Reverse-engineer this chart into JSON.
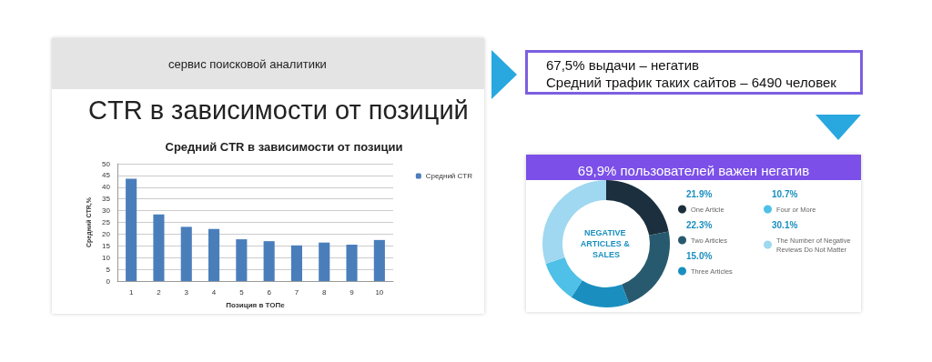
{
  "chart_data": [
    {
      "type": "bar",
      "title": "Средний CTR в зависимости от позиции",
      "annotations": [
        "сервис поисковой аналитики",
        "CTR в зависимости от позиций"
      ],
      "xlabel": "Позиция в ТОПе",
      "ylabel": "Средний CTR,%",
      "categories": [
        "1",
        "2",
        "3",
        "4",
        "5",
        "6",
        "7",
        "8",
        "9",
        "10"
      ],
      "series": [
        {
          "name": "Средний CTR",
          "color": "#4a7ebb",
          "values": [
            43.6,
            28.4,
            23.1,
            22.2,
            17.8,
            17.0,
            15.2,
            16.4,
            15.5,
            17.5
          ]
        }
      ],
      "ylim": [
        0,
        50
      ],
      "yticks": [
        0,
        5,
        10,
        15,
        20,
        25,
        30,
        35,
        40,
        45,
        50
      ],
      "grid": "y",
      "legend": "right"
    },
    {
      "type": "other",
      "annotations": [
        "67,5% выдачи – негатив",
        "Средний трафик таких сайтов – 6490 человек"
      ]
    },
    {
      "type": "donut",
      "title": "69,9% пользователей важен негатив",
      "annotations": [
        "NEGATIVE ARTICLES & SALES"
      ],
      "categories": [
        "One Article",
        "Two Articles",
        "Three Articles",
        "Four or More",
        "The Number of Negative Reviews Do Not Matter"
      ],
      "values": [
        21.9,
        22.3,
        15.0,
        10.7,
        30.1
      ],
      "value_labels": [
        "21.9%",
        "22.3%",
        "15.0%",
        "10.7%",
        "30.1%"
      ],
      "colors": [
        "#1b2f3e",
        "#285a6f",
        "#1a8fbf",
        "#4fc0e8",
        "#9fd8f0"
      ],
      "legend": "right"
    }
  ]
}
